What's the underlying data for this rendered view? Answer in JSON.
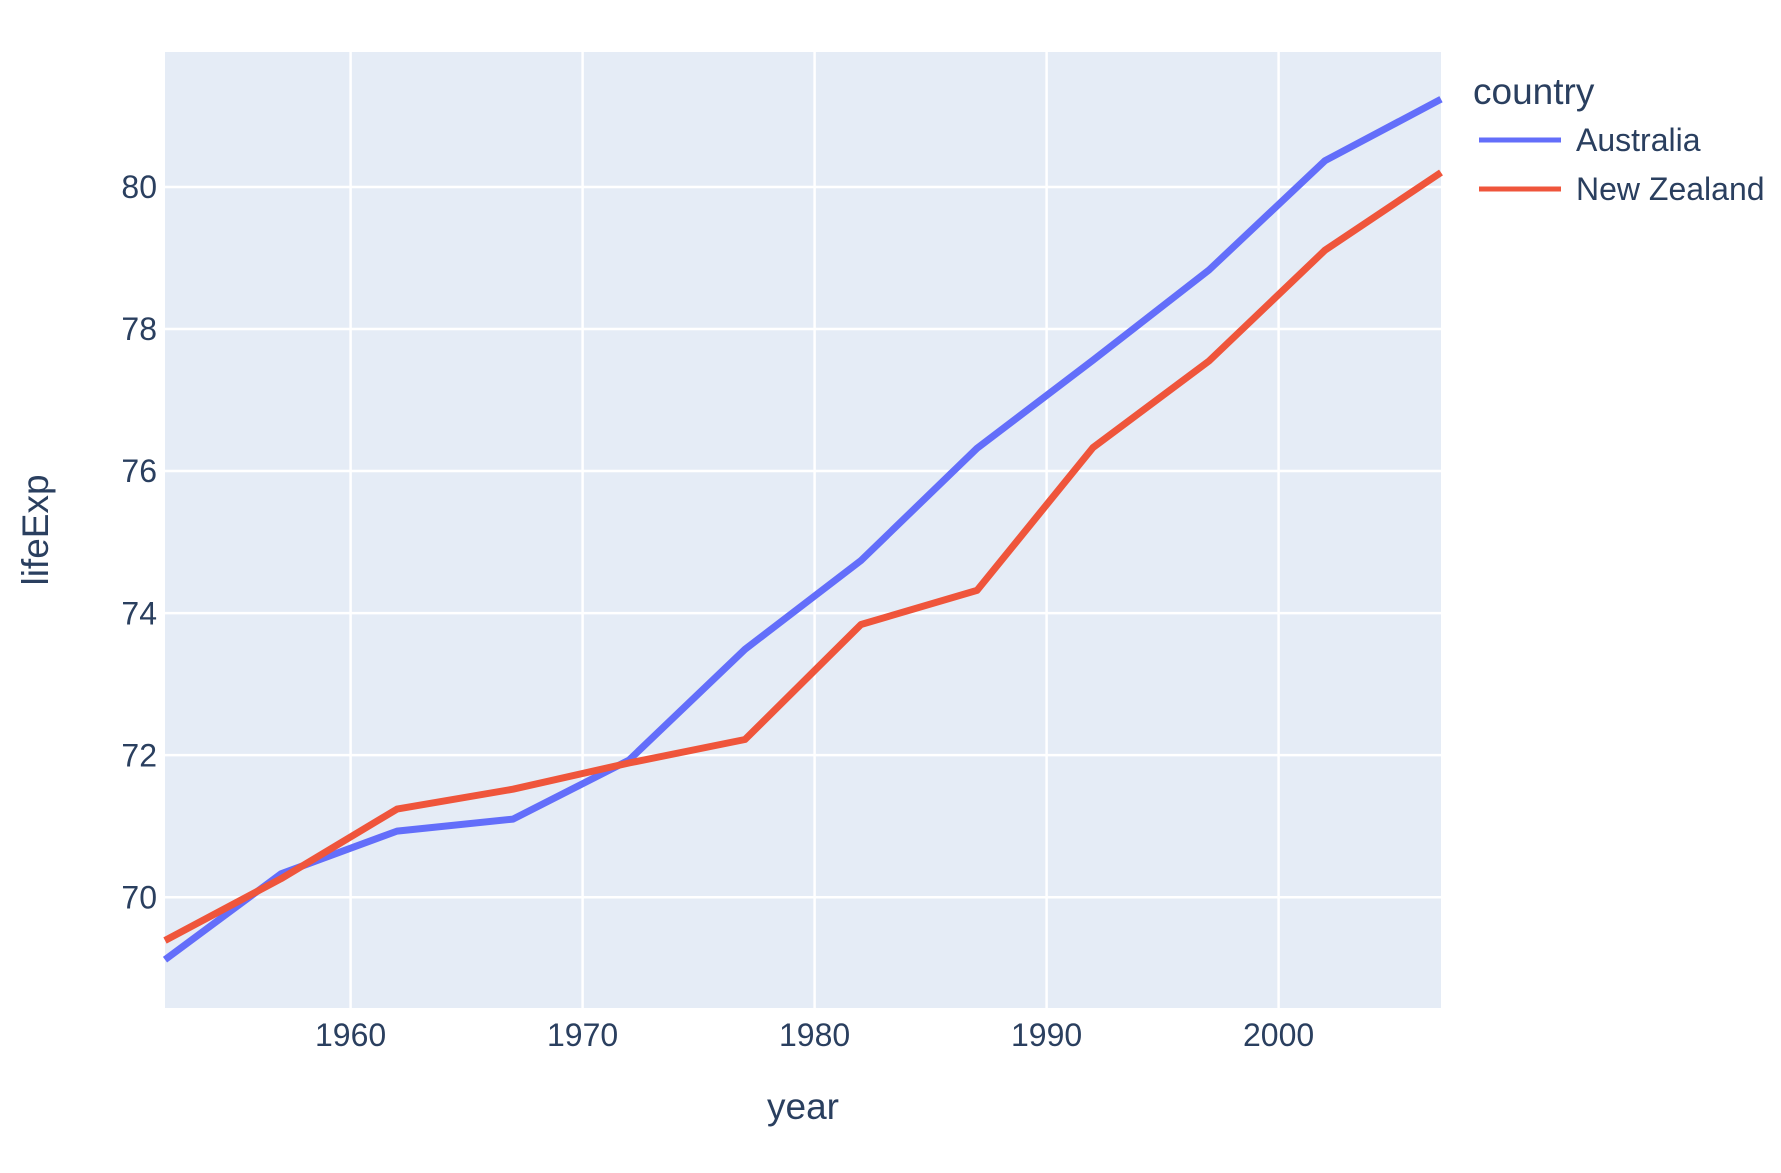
{
  "chart_data": {
    "type": "line",
    "title": "",
    "xlabel": "year",
    "ylabel": "lifeExp",
    "legend_title": "country",
    "x": [
      1952,
      1957,
      1962,
      1967,
      1972,
      1977,
      1982,
      1987,
      1992,
      1997,
      2002,
      2007
    ],
    "series": [
      {
        "name": "Australia",
        "color": "#636EFA",
        "values": [
          69.12,
          70.33,
          70.93,
          71.1,
          71.93,
          73.49,
          74.74,
          76.32,
          77.56,
          78.83,
          80.37,
          81.235
        ]
      },
      {
        "name": "New Zealand",
        "color": "#EF553B",
        "values": [
          69.39,
          70.26,
          71.24,
          71.52,
          71.89,
          72.22,
          73.84,
          74.32,
          76.33,
          77.55,
          79.11,
          80.204
        ]
      }
    ],
    "xlim": [
      1952,
      2007
    ],
    "ylim": [
      68.44,
      81.9
    ],
    "xticks": [
      1960,
      1970,
      1980,
      1990,
      2000
    ],
    "yticks": [
      70,
      72,
      74,
      76,
      78,
      80
    ],
    "grid": true,
    "legend_position": "top-right-outside",
    "colors": {
      "plot_background": "#E5ECF6",
      "grid": "#FFFFFF",
      "text": "#2A3F5F",
      "figure_background": "#FFFFFF"
    }
  }
}
